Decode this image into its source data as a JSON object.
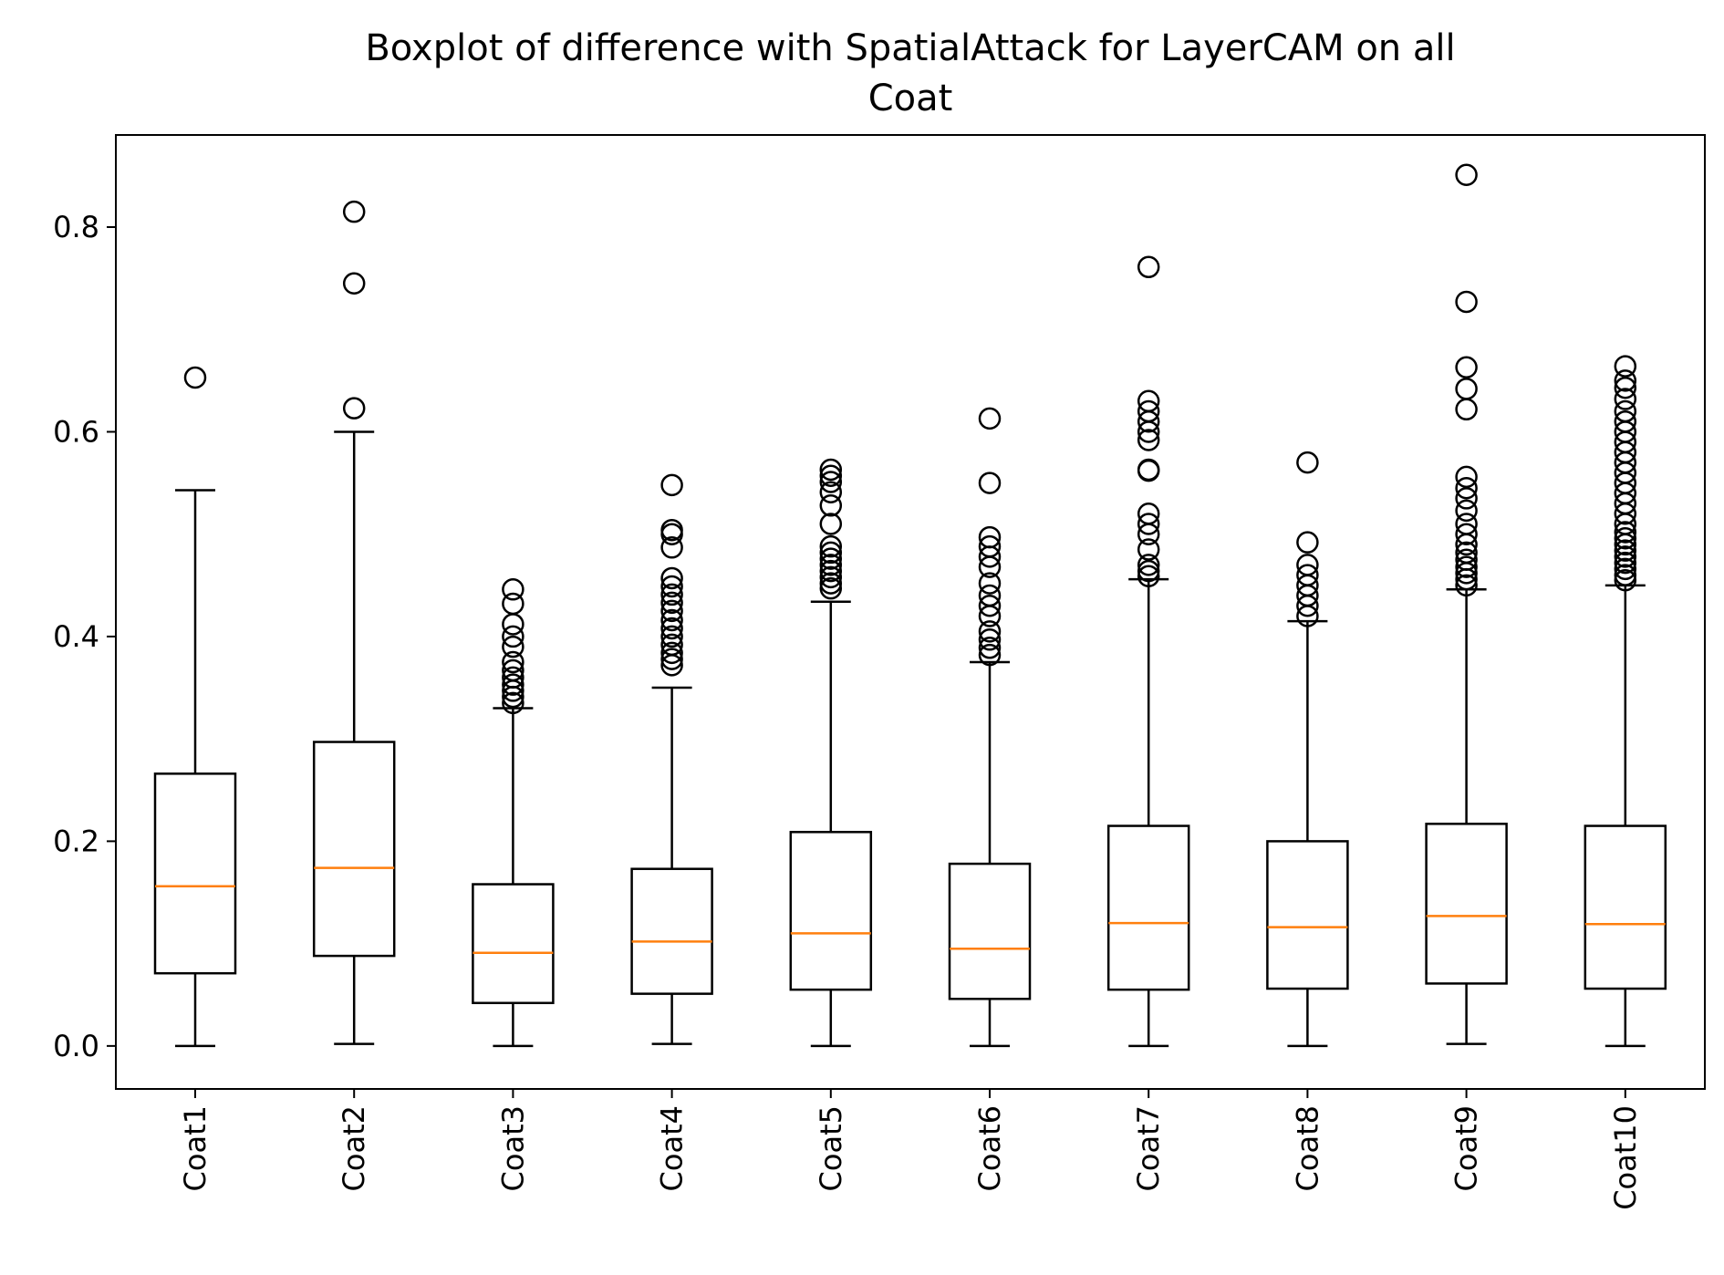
{
  "chart_data": {
    "type": "boxplot",
    "title_lines": [
      "Boxplot of difference with SpatialAttack for LayerCAM on all",
      "Coat"
    ],
    "xlabel": "",
    "ylabel": "",
    "ylim": [
      -0.042,
      0.89
    ],
    "yticks": [
      0.0,
      0.2,
      0.4,
      0.6,
      0.8
    ],
    "ytick_labels": [
      "0.0",
      "0.2",
      "0.4",
      "0.6",
      "0.8"
    ],
    "grid": false,
    "colors": {
      "box": "#000000",
      "median": "#ff7f0e",
      "flier": "#000000"
    },
    "categories": [
      "Coat1",
      "Coat2",
      "Coat3",
      "Coat4",
      "Coat5",
      "Coat6",
      "Coat7",
      "Coat8",
      "Coat9",
      "Coat10"
    ],
    "boxes": [
      {
        "whislo": 0.0,
        "q1": 0.071,
        "med": 0.156,
        "q3": 0.266,
        "whishi": 0.543,
        "fliers": [
          0.653
        ]
      },
      {
        "whislo": 0.002,
        "q1": 0.088,
        "med": 0.174,
        "q3": 0.297,
        "whishi": 0.6,
        "fliers": [
          0.623,
          0.745,
          0.815
        ]
      },
      {
        "whislo": 0.0,
        "q1": 0.042,
        "med": 0.091,
        "q3": 0.158,
        "whishi": 0.33,
        "fliers": [
          0.335,
          0.341,
          0.347,
          0.353,
          0.36,
          0.367,
          0.375,
          0.39,
          0.4,
          0.412,
          0.432,
          0.446
        ]
      },
      {
        "whislo": 0.002,
        "q1": 0.051,
        "med": 0.102,
        "q3": 0.173,
        "whishi": 0.35,
        "fliers": [
          0.372,
          0.378,
          0.384,
          0.392,
          0.4,
          0.408,
          0.416,
          0.425,
          0.433,
          0.441,
          0.449,
          0.457,
          0.487,
          0.5,
          0.504,
          0.548
        ]
      },
      {
        "whislo": 0.0,
        "q1": 0.055,
        "med": 0.11,
        "q3": 0.209,
        "whishi": 0.434,
        "fliers": [
          0.447,
          0.452,
          0.458,
          0.464,
          0.47,
          0.476,
          0.482,
          0.488,
          0.51,
          0.528,
          0.541,
          0.551,
          0.557,
          0.563
        ]
      },
      {
        "whislo": 0.0,
        "q1": 0.046,
        "med": 0.095,
        "q3": 0.178,
        "whishi": 0.375,
        "fliers": [
          0.382,
          0.389,
          0.397,
          0.405,
          0.42,
          0.43,
          0.44,
          0.452,
          0.468,
          0.478,
          0.488,
          0.497,
          0.55,
          0.613
        ]
      },
      {
        "whislo": 0.0,
        "q1": 0.055,
        "med": 0.12,
        "q3": 0.215,
        "whishi": 0.456,
        "fliers": [
          0.459,
          0.464,
          0.47,
          0.485,
          0.5,
          0.51,
          0.52,
          0.562,
          0.563,
          0.592,
          0.6,
          0.61,
          0.62,
          0.63,
          0.761
        ]
      },
      {
        "whislo": 0.0,
        "q1": 0.056,
        "med": 0.116,
        "q3": 0.2,
        "whishi": 0.415,
        "fliers": [
          0.42,
          0.43,
          0.44,
          0.45,
          0.46,
          0.47,
          0.492,
          0.57
        ]
      },
      {
        "whislo": 0.002,
        "q1": 0.061,
        "med": 0.127,
        "q3": 0.217,
        "whishi": 0.446,
        "fliers": [
          0.45,
          0.456,
          0.462,
          0.468,
          0.475,
          0.482,
          0.49,
          0.5,
          0.51,
          0.523,
          0.535,
          0.545,
          0.556,
          0.622,
          0.642,
          0.663,
          0.727,
          0.851
        ]
      },
      {
        "whislo": 0.0,
        "q1": 0.056,
        "med": 0.119,
        "q3": 0.215,
        "whishi": 0.45,
        "fliers": [
          0.455,
          0.46,
          0.466,
          0.472,
          0.478,
          0.484,
          0.49,
          0.496,
          0.502,
          0.51,
          0.52,
          0.53,
          0.54,
          0.55,
          0.56,
          0.57,
          0.58,
          0.59,
          0.6,
          0.61,
          0.62,
          0.632,
          0.643,
          0.65,
          0.664
        ]
      }
    ]
  }
}
